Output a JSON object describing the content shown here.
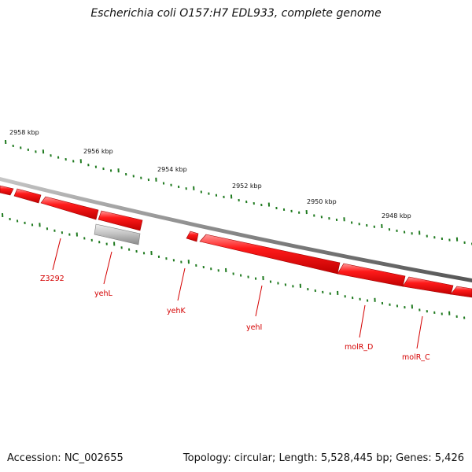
{
  "title": "Escherichia coli O157:H7 EDL933, complete genome",
  "footer": {
    "accession": "Accession: NC_002655",
    "summary": "Topology: circular; Length: 5,528,445 bp; Genes: 5,426"
  },
  "colors": {
    "backbone": "#8a8a8a",
    "gene_fill": "#ff0000",
    "gene_highlight": "#ff8080",
    "gene_shadow": "#b00000",
    "pseudo_fill": "#c8c8c8",
    "tick_color": "#1f7a1f",
    "label_color": "#d40000"
  },
  "scale_labels": [
    "2958 kbp",
    "2956 kbp",
    "2954 kbp",
    "2952 kbp",
    "2950 kbp",
    "2948 kbp"
  ],
  "genes": [
    {
      "name": "",
      "type": "gene",
      "strand": "reverse"
    },
    {
      "name": "",
      "type": "gene",
      "strand": "reverse"
    },
    {
      "name": "Z3292",
      "type": "gene",
      "strand": "reverse"
    },
    {
      "name": "",
      "type": "gene",
      "strand": "forward"
    },
    {
      "name": "yehL",
      "type": "pseudogene",
      "strand": "none"
    },
    {
      "name": "yehK",
      "type": "gene",
      "strand": "reverse"
    },
    {
      "name": "yehI",
      "type": "gene",
      "strand": "reverse"
    },
    {
      "name": "molR_D",
      "type": "gene",
      "strand": "reverse"
    },
    {
      "name": "molR_C",
      "type": "gene",
      "strand": "reverse"
    },
    {
      "name": "",
      "type": "gene",
      "strand": "reverse"
    }
  ]
}
